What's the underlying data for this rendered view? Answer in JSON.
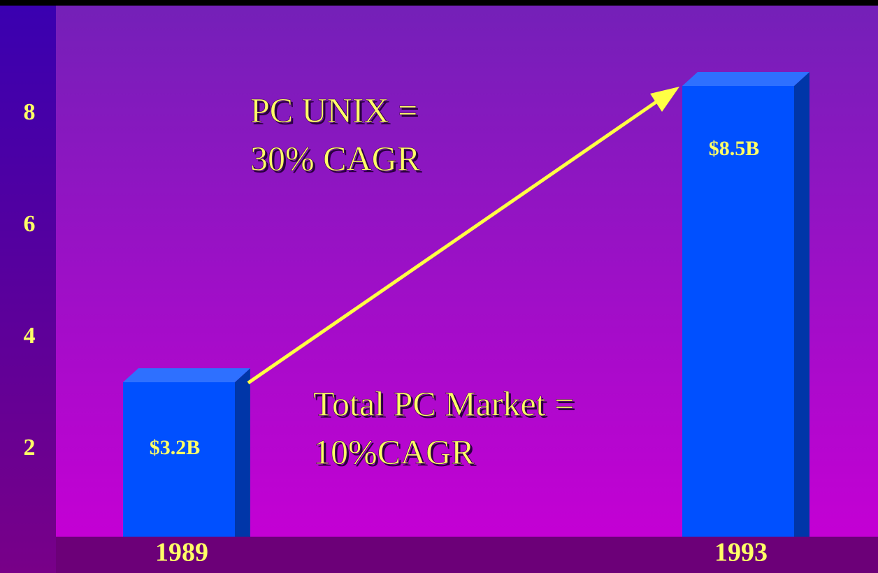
{
  "chart_data": {
    "type": "bar",
    "categories": [
      "1989",
      "1993"
    ],
    "values": [
      3.2,
      8.5
    ],
    "value_labels": [
      "$3.2B",
      "$8.5B"
    ],
    "color": "#0050ff",
    "ylim": [
      0,
      10
    ],
    "yticks": [
      2,
      4,
      6,
      8
    ],
    "annotations": [
      "PC UNIX =",
      "30% CAGR",
      "Total PC Market =",
      "10%CAGR"
    ]
  }
}
